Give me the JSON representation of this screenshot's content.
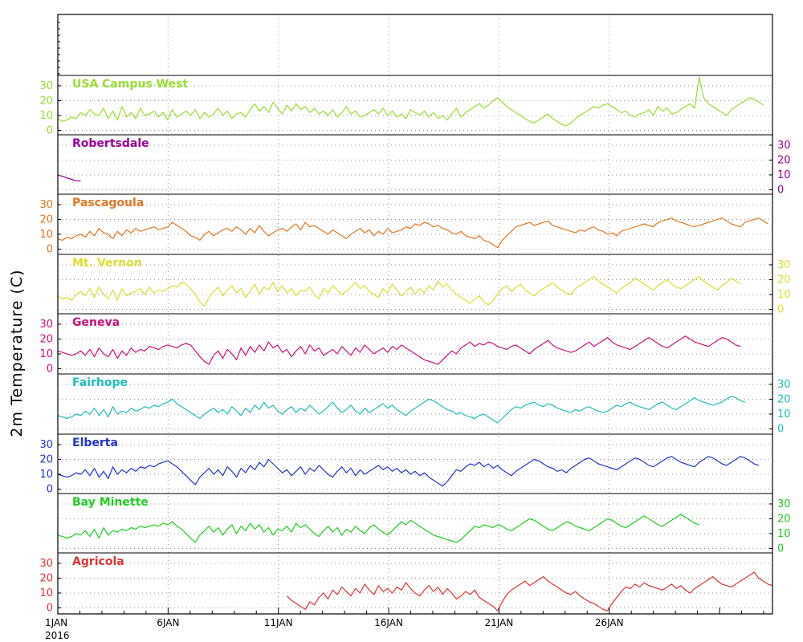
{
  "chart_data": {
    "type": "line",
    "title": "",
    "ylabel": "2m Temperature (C)",
    "xlabel": "",
    "year_label": "2016",
    "x_tick_labels": [
      "1JAN",
      "6JAN",
      "11JAN",
      "16JAN",
      "21JAN",
      "26JAN"
    ],
    "x_tick_days": [
      0,
      5,
      10,
      15,
      20,
      25
    ],
    "x_range_days": [
      0,
      32.4
    ],
    "y_ticks": [
      "0",
      "10",
      "20",
      "30"
    ],
    "ylim": [
      -3,
      37
    ],
    "grid": "dotted",
    "series": [
      {
        "name": "USA Campus West",
        "color": "#99dd33",
        "axis_side": "left",
        "values": [
          8,
          6,
          7,
          9,
          8,
          12,
          10,
          14,
          11,
          10,
          15,
          8,
          13,
          7,
          16,
          9,
          12,
          8,
          15,
          10,
          11,
          13,
          9,
          12,
          7,
          14,
          9,
          11,
          13,
          10,
          14,
          8,
          12,
          9,
          11,
          15,
          10,
          13,
          8,
          11,
          12,
          9,
          14,
          18,
          13,
          16,
          12,
          19,
          15,
          11,
          17,
          13,
          18,
          14,
          16,
          12,
          15,
          11,
          13,
          10,
          14,
          9,
          12,
          16,
          11,
          13,
          9,
          10,
          12,
          14,
          11,
          15,
          10,
          13,
          9,
          11,
          8,
          14,
          12,
          10,
          13,
          9,
          12,
          8,
          10,
          7,
          11,
          15,
          9,
          12,
          14,
          16,
          18,
          15,
          17,
          20,
          22,
          19,
          16,
          14,
          12,
          10,
          8,
          6,
          5,
          7,
          9,
          11,
          8,
          6,
          4,
          3,
          5,
          8,
          10,
          12,
          14,
          16,
          15,
          17,
          18,
          16,
          14,
          12,
          13,
          10,
          9,
          11,
          12,
          14,
          10,
          16,
          13,
          15,
          11,
          12,
          14,
          16,
          18,
          15,
          36,
          22,
          18,
          16,
          14,
          12,
          10,
          14,
          16,
          18,
          20,
          22,
          21,
          19,
          17
        ]
      },
      {
        "name": "Robertsdale",
        "color": "#990099",
        "axis_side": "right",
        "values": [
          10,
          9,
          8,
          7,
          6,
          6
        ]
      },
      {
        "name": "Pascagoula",
        "color": "#dd7722",
        "axis_side": "left",
        "values": [
          7,
          6,
          8,
          7,
          9,
          10,
          8,
          12,
          9,
          14,
          11,
          10,
          7,
          12,
          9,
          13,
          11,
          14,
          12,
          13,
          14,
          15,
          13,
          14,
          15,
          18,
          16,
          14,
          12,
          9,
          8,
          6,
          10,
          12,
          9,
          11,
          13,
          14,
          12,
          15,
          13,
          10,
          14,
          11,
          16,
          12,
          9,
          11,
          13,
          14,
          12,
          15,
          17,
          13,
          18,
          15,
          16,
          14,
          12,
          10,
          13,
          11,
          9,
          7,
          10,
          12,
          14,
          11,
          13,
          9,
          12,
          10,
          14,
          11,
          12,
          13,
          15,
          14,
          17,
          16,
          18,
          17,
          15,
          16,
          14,
          13,
          11,
          10,
          12,
          9,
          8,
          7,
          9,
          6,
          5,
          3,
          1,
          6,
          9,
          12,
          15,
          16,
          17,
          18,
          16,
          17,
          18,
          19,
          16,
          15,
          14,
          13,
          12,
          11,
          13,
          12,
          14,
          15,
          13,
          12,
          10,
          11,
          9,
          12,
          13,
          14,
          15,
          16,
          17,
          16,
          15,
          18,
          19,
          20,
          21,
          19,
          18,
          17,
          16,
          15,
          16,
          17,
          18,
          19,
          20,
          21,
          19,
          17,
          16,
          15,
          18,
          19,
          20,
          21,
          19,
          17
        ]
      },
      {
        "name": "Mt. Vernon",
        "color": "#dddd33",
        "axis_side": "right",
        "values": [
          9,
          7,
          8,
          6,
          10,
          12,
          9,
          14,
          8,
          15,
          10,
          7,
          13,
          6,
          14,
          9,
          11,
          12,
          14,
          10,
          15,
          11,
          13,
          12,
          14,
          16,
          15,
          18,
          17,
          14,
          10,
          5,
          2,
          8,
          12,
          15,
          9,
          13,
          16,
          11,
          14,
          8,
          12,
          17,
          10,
          15,
          13,
          18,
          12,
          16,
          11,
          14,
          9,
          13,
          12,
          15,
          10,
          7,
          14,
          11,
          16,
          13,
          10,
          12,
          15,
          18,
          14,
          16,
          12,
          10,
          8,
          14,
          11,
          17,
          13,
          9,
          12,
          15,
          10,
          14,
          11,
          16,
          13,
          19,
          15,
          17,
          13,
          10,
          8,
          6,
          4,
          7,
          9,
          5,
          3,
          6,
          10,
          14,
          16,
          12,
          15,
          17,
          13,
          11,
          9,
          12,
          14,
          16,
          18,
          15,
          13,
          11,
          10,
          14,
          16,
          18,
          20,
          22,
          19,
          17,
          15,
          13,
          11,
          14,
          16,
          18,
          21,
          19,
          17,
          15,
          13,
          16,
          18,
          20,
          17,
          15,
          14,
          16,
          18,
          20,
          22,
          19,
          17,
          15,
          13,
          16,
          18,
          21,
          19,
          17
        ]
      },
      {
        "name": "Geneva",
        "color": "#cc1177",
        "axis_side": "left",
        "values": [
          12,
          11,
          10,
          9,
          10,
          12,
          9,
          13,
          8,
          14,
          10,
          8,
          13,
          7,
          12,
          9,
          14,
          11,
          13,
          12,
          15,
          14,
          13,
          15,
          16,
          15,
          14,
          16,
          17,
          16,
          12,
          8,
          5,
          3,
          9,
          12,
          7,
          13,
          10,
          6,
          14,
          9,
          15,
          11,
          16,
          12,
          18,
          14,
          16,
          11,
          13,
          8,
          12,
          15,
          10,
          16,
          12,
          14,
          9,
          11,
          13,
          10,
          15,
          12,
          9,
          14,
          11,
          16,
          13,
          10,
          12,
          14,
          11,
          15,
          13,
          16,
          14,
          12,
          10,
          8,
          6,
          5,
          4,
          3,
          6,
          9,
          12,
          10,
          14,
          16,
          18,
          15,
          17,
          16,
          18,
          17,
          15,
          14,
          13,
          15,
          16,
          14,
          12,
          10,
          13,
          15,
          17,
          19,
          16,
          14,
          13,
          12,
          11,
          12,
          14,
          16,
          18,
          15,
          17,
          19,
          21,
          18,
          16,
          15,
          14,
          13,
          15,
          17,
          19,
          21,
          19,
          17,
          15,
          14,
          16,
          18,
          20,
          22,
          20,
          18,
          17,
          16,
          15,
          17,
          19,
          21,
          20,
          18,
          16,
          15
        ]
      },
      {
        "name": "Fairhope",
        "color": "#22bbbb",
        "axis_side": "right",
        "values": [
          9,
          8,
          7,
          8,
          10,
          9,
          12,
          10,
          14,
          9,
          13,
          8,
          15,
          10,
          12,
          11,
          14,
          12,
          13,
          15,
          14,
          16,
          15,
          17,
          18,
          20,
          17,
          15,
          13,
          11,
          9,
          7,
          10,
          12,
          14,
          11,
          13,
          10,
          15,
          12,
          9,
          14,
          11,
          16,
          13,
          18,
          14,
          16,
          12,
          10,
          13,
          15,
          11,
          14,
          12,
          16,
          13,
          10,
          12,
          15,
          18,
          14,
          11,
          13,
          16,
          12,
          10,
          14,
          11,
          13,
          15,
          17,
          14,
          16,
          13,
          11,
          9,
          12,
          14,
          16,
          18,
          20,
          19,
          17,
          15,
          13,
          12,
          10,
          11,
          9,
          8,
          7,
          9,
          10,
          8,
          6,
          4,
          7,
          10,
          13,
          15,
          14,
          16,
          17,
          18,
          16,
          15,
          17,
          16,
          14,
          13,
          12,
          11,
          13,
          12,
          14,
          15,
          13,
          12,
          11,
          12,
          14,
          16,
          15,
          17,
          18,
          16,
          15,
          14,
          13,
          15,
          17,
          18,
          16,
          14,
          13,
          15,
          17,
          19,
          21,
          19,
          18,
          17,
          16,
          17,
          18,
          20,
          22,
          21,
          19,
          18
        ]
      },
      {
        "name": "Elberta",
        "color": "#2233cc",
        "axis_side": "left",
        "values": [
          10,
          9,
          8,
          9,
          11,
          10,
          13,
          9,
          14,
          8,
          12,
          7,
          15,
          10,
          13,
          11,
          14,
          12,
          15,
          14,
          16,
          15,
          17,
          18,
          19,
          17,
          15,
          12,
          9,
          6,
          3,
          8,
          11,
          14,
          10,
          13,
          9,
          15,
          12,
          8,
          14,
          11,
          16,
          13,
          18,
          15,
          20,
          17,
          14,
          11,
          13,
          9,
          12,
          15,
          10,
          14,
          12,
          16,
          13,
          10,
          8,
          12,
          15,
          11,
          14,
          9,
          13,
          10,
          12,
          14,
          16,
          13,
          15,
          12,
          14,
          11,
          13,
          10,
          12,
          9,
          11,
          8,
          6,
          4,
          2,
          5,
          9,
          13,
          12,
          15,
          17,
          16,
          18,
          15,
          17,
          14,
          16,
          13,
          11,
          9,
          12,
          14,
          16,
          18,
          20,
          19,
          17,
          15,
          14,
          12,
          13,
          11,
          14,
          16,
          18,
          20,
          21,
          19,
          17,
          16,
          15,
          14,
          13,
          15,
          17,
          19,
          21,
          20,
          18,
          16,
          15,
          17,
          19,
          21,
          22,
          20,
          18,
          17,
          16,
          15,
          18,
          20,
          22,
          21,
          19,
          17,
          16,
          18,
          20,
          22,
          21,
          19,
          17,
          16
        ]
      },
      {
        "name": "Bay Minette",
        "color": "#22cc22",
        "axis_side": "right",
        "values": [
          9,
          8,
          7,
          8,
          10,
          9,
          12,
          8,
          13,
          7,
          14,
          9,
          12,
          11,
          13,
          12,
          14,
          13,
          15,
          14,
          15,
          16,
          15,
          17,
          16,
          18,
          15,
          13,
          10,
          7,
          4,
          9,
          12,
          15,
          11,
          14,
          9,
          13,
          16,
          10,
          15,
          12,
          17,
          13,
          16,
          11,
          14,
          9,
          13,
          12,
          15,
          11,
          17,
          14,
          16,
          13,
          10,
          8,
          12,
          15,
          11,
          14,
          9,
          13,
          11,
          15,
          12,
          10,
          14,
          16,
          13,
          11,
          9,
          12,
          15,
          18,
          16,
          19,
          17,
          15,
          13,
          11,
          9,
          8,
          7,
          6,
          5,
          4,
          6,
          9,
          12,
          15,
          14,
          16,
          15,
          14,
          16,
          15,
          13,
          12,
          14,
          16,
          18,
          20,
          19,
          17,
          15,
          13,
          12,
          14,
          16,
          18,
          17,
          15,
          14,
          13,
          12,
          14,
          16,
          18,
          20,
          19,
          17,
          15,
          14,
          16,
          18,
          20,
          22,
          20,
          18,
          16,
          15,
          17,
          19,
          21,
          23,
          21,
          19,
          17,
          16
        ]
      },
      {
        "name": "Agricola",
        "color": "#dd3333",
        "axis_side": "left",
        "values": [
          null,
          null,
          null,
          null,
          null,
          null,
          null,
          null,
          null,
          null,
          null,
          null,
          null,
          null,
          null,
          null,
          null,
          null,
          null,
          null,
          null,
          null,
          null,
          null,
          null,
          null,
          null,
          null,
          null,
          null,
          null,
          null,
          null,
          null,
          null,
          null,
          null,
          null,
          null,
          null,
          null,
          null,
          null,
          null,
          null,
          null,
          null,
          null,
          null,
          null,
          8,
          5,
          3,
          1,
          -1,
          4,
          2,
          7,
          10,
          6,
          12,
          9,
          14,
          11,
          8,
          13,
          10,
          16,
          12,
          9,
          15,
          11,
          13,
          10,
          14,
          12,
          17,
          13,
          10,
          8,
          12,
          15,
          11,
          14,
          9,
          13,
          10,
          6,
          8,
          11,
          9,
          12,
          7,
          5,
          3,
          1,
          -2,
          4,
          9,
          12,
          14,
          16,
          18,
          15,
          17,
          19,
          21,
          18,
          16,
          14,
          12,
          10,
          9,
          11,
          8,
          6,
          4,
          3,
          1,
          -1,
          -2,
          3,
          7,
          11,
          14,
          13,
          16,
          14,
          17,
          15,
          14,
          13,
          12,
          14,
          16,
          13,
          15,
          12,
          10,
          13,
          15,
          17,
          19,
          21,
          18,
          16,
          15,
          14,
          16,
          18,
          20,
          22,
          24,
          20,
          18,
          16,
          15
        ]
      }
    ]
  }
}
